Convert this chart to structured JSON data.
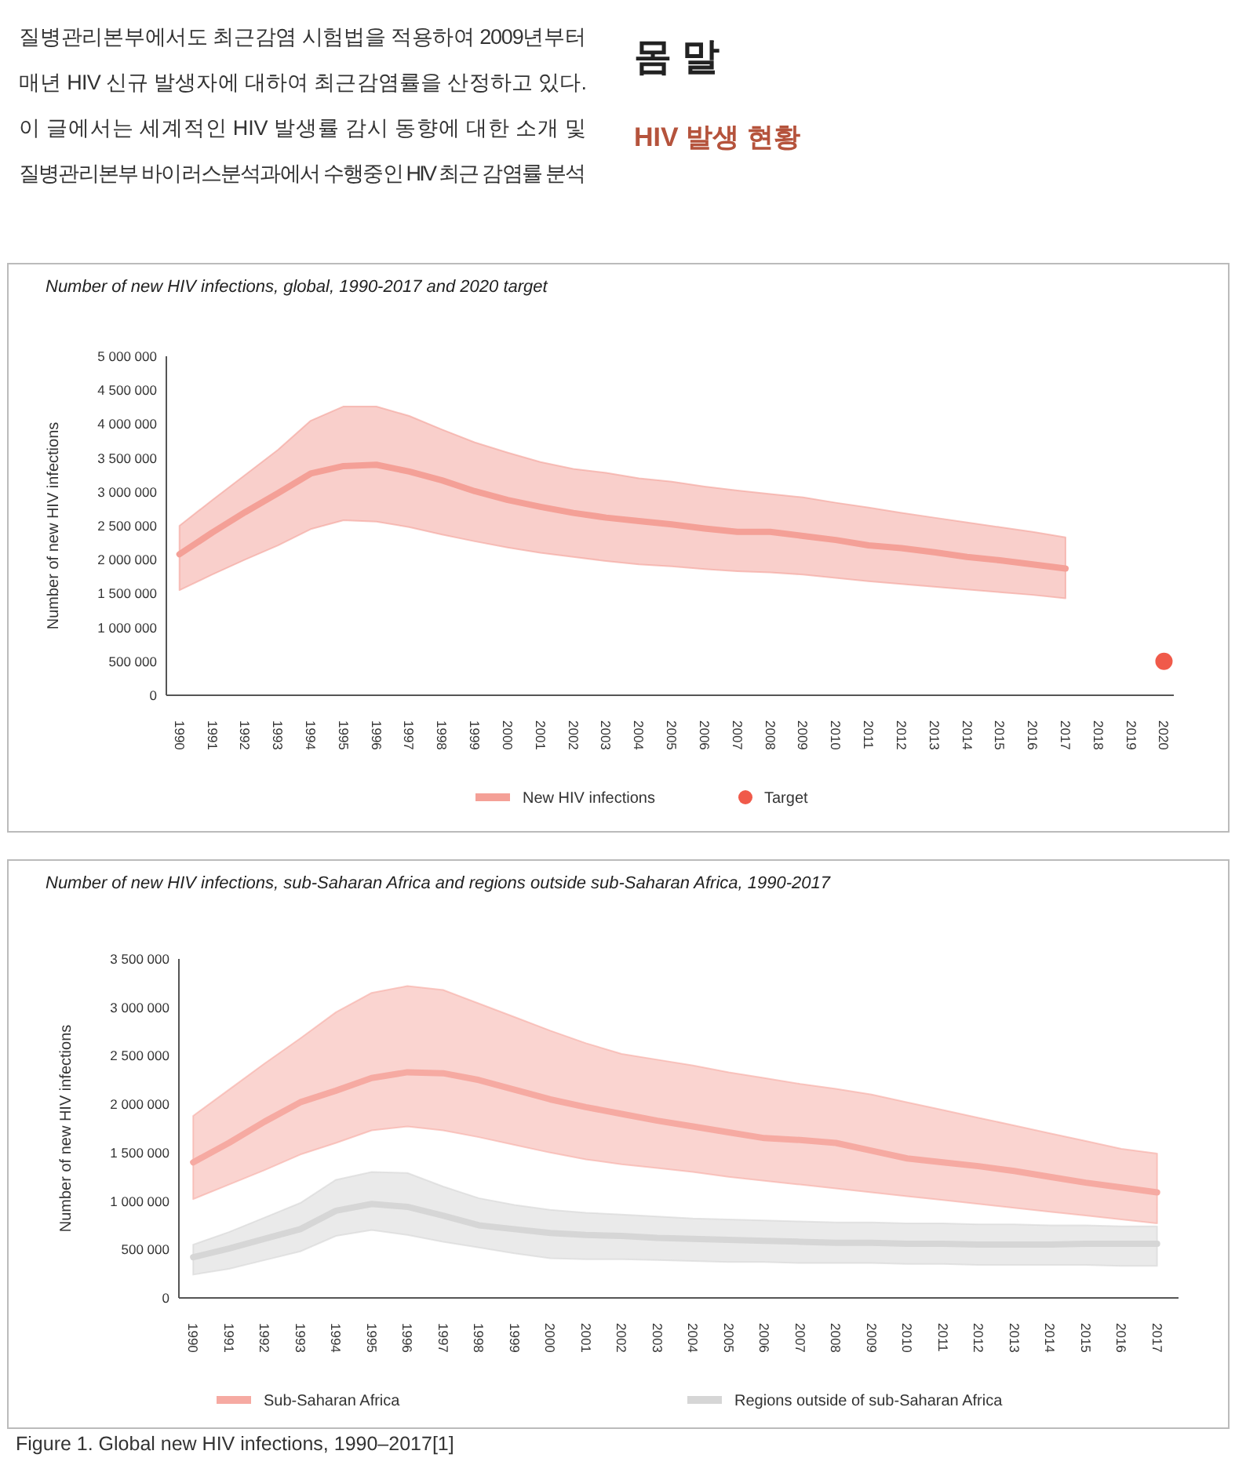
{
  "chart_data": [
    {
      "type": "line",
      "title": "Number of new HIV infections, global, 1990-2017 and 2020 target",
      "ylabel": "Number of new HIV infections",
      "annotations": [
        "질병관리본부에서도 최근감염 시험법을 적용하여 2009년부터",
        "매년 HIV 신규 발생자에 대하여 최근감염률을 산정하고 있다.",
        "이 글에서는 세계적인 HIV 발생률 감시 동향에 대한 소개 및",
        "질병관리본부 바이러스분석과에서 수행중인 HIV 최근 감염률 분석",
        "몸 말",
        "HIV 발생 현황"
      ],
      "x": [
        1990,
        1991,
        1992,
        1993,
        1994,
        1995,
        1996,
        1997,
        1998,
        1999,
        2000,
        2001,
        2002,
        2003,
        2004,
        2005,
        2006,
        2007,
        2008,
        2009,
        2010,
        2011,
        2012,
        2013,
        2014,
        2015,
        2016,
        2017,
        2018,
        2019,
        2020
      ],
      "xlim": [
        1989.6,
        2020.3
      ],
      "xticks": [
        1990,
        1991,
        1992,
        1993,
        1994,
        1995,
        1996,
        1997,
        1998,
        1999,
        2000,
        2001,
        2002,
        2003,
        2004,
        2005,
        2006,
        2007,
        2008,
        2009,
        2010,
        2011,
        2012,
        2013,
        2014,
        2015,
        2016,
        2017,
        2018,
        2019,
        2020
      ],
      "ylim": [
        0,
        5000000
      ],
      "yticks": [
        {
          "value": 0,
          "label": "0"
        },
        {
          "value": 500000,
          "label": "500 000"
        },
        {
          "value": 1000000,
          "label": "1 000 000"
        },
        {
          "value": 1500000,
          "label": "1 500 000"
        },
        {
          "value": 2000000,
          "label": "2 000 000"
        },
        {
          "value": 2500000,
          "label": "2 500 000"
        },
        {
          "value": 3000000,
          "label": "3 000 000"
        },
        {
          "value": 3500000,
          "label": "3 500 000"
        },
        {
          "value": 4000000,
          "label": "4 000 000"
        },
        {
          "value": 4500000,
          "label": "4 500 000"
        },
        {
          "value": 5000000,
          "label": "5 000 000"
        }
      ],
      "legend": "bottom",
      "series": [
        {
          "name": "New HIV infections",
          "color": "#f4a097",
          "values": [
            2080000,
            2400000,
            2700000,
            2980000,
            3270000,
            3380000,
            3400000,
            3300000,
            3170000,
            3010000,
            2880000,
            2780000,
            2690000,
            2620000,
            2570000,
            2520000,
            2460000,
            2410000,
            2410000,
            2350000,
            2290000,
            2210000,
            2170000,
            2110000,
            2040000,
            1990000,
            1930000,
            1870000,
            null,
            null,
            null
          ],
          "upper": [
            2500000,
            2880000,
            3250000,
            3620000,
            4050000,
            4260000,
            4260000,
            4120000,
            3920000,
            3730000,
            3580000,
            3440000,
            3340000,
            3280000,
            3200000,
            3150000,
            3080000,
            3020000,
            2970000,
            2920000,
            2840000,
            2770000,
            2690000,
            2620000,
            2550000,
            2480000,
            2410000,
            2330000,
            null,
            null,
            null
          ],
          "lower": [
            1550000,
            1780000,
            2000000,
            2210000,
            2450000,
            2580000,
            2560000,
            2480000,
            2370000,
            2270000,
            2180000,
            2100000,
            2040000,
            1980000,
            1930000,
            1900000,
            1860000,
            1830000,
            1810000,
            1780000,
            1730000,
            1680000,
            1640000,
            1600000,
            1560000,
            1520000,
            1480000,
            1430000,
            null,
            null,
            null
          ]
        },
        {
          "name": "Target",
          "type": "scatter",
          "marker": "circle",
          "color": "#f05a4a",
          "values": [
            null,
            null,
            null,
            null,
            null,
            null,
            null,
            null,
            null,
            null,
            null,
            null,
            null,
            null,
            null,
            null,
            null,
            null,
            null,
            null,
            null,
            null,
            null,
            null,
            null,
            null,
            null,
            null,
            null,
            null,
            500000
          ]
        }
      ]
    },
    {
      "type": "line",
      "title": "Number of new HIV infections, sub-Saharan Africa and regions outside sub-Saharan Africa, 1990-2017",
      "ylabel": "Number of new HIV infections",
      "annotations": [
        "Figure 1. Global new HIV infections, 1990–2017[1]"
      ],
      "x": [
        1990,
        1991,
        1992,
        1993,
        1994,
        1995,
        1996,
        1997,
        1998,
        1999,
        2000,
        2001,
        2002,
        2003,
        2004,
        2005,
        2006,
        2007,
        2008,
        2009,
        2010,
        2011,
        2012,
        2013,
        2014,
        2015,
        2016,
        2017
      ],
      "xlim": [
        1989.6,
        2017.6
      ],
      "xticks": [
        1990,
        1991,
        1992,
        1993,
        1994,
        1995,
        1996,
        1997,
        1998,
        1999,
        2000,
        2001,
        2002,
        2003,
        2004,
        2005,
        2006,
        2007,
        2008,
        2009,
        2010,
        2011,
        2012,
        2013,
        2014,
        2015,
        2016,
        2017
      ],
      "ylim": [
        0,
        3500000
      ],
      "yticks": [
        {
          "value": 0,
          "label": "0"
        },
        {
          "value": 500000,
          "label": "500 000"
        },
        {
          "value": 1000000,
          "label": "1 000 000"
        },
        {
          "value": 1500000,
          "label": "1 500 000"
        },
        {
          "value": 2000000,
          "label": "2 000 000"
        },
        {
          "value": 2500000,
          "label": "2 500 000"
        },
        {
          "value": 3000000,
          "label": "3 000 000"
        },
        {
          "value": 3500000,
          "label": "3 500 000"
        }
      ],
      "legend": "bottom",
      "series": [
        {
          "name": "Sub-Saharan Africa",
          "color": "#f6aaa2",
          "values": [
            1400000,
            1600000,
            1820000,
            2020000,
            2140000,
            2270000,
            2330000,
            2320000,
            2250000,
            2150000,
            2050000,
            1970000,
            1900000,
            1830000,
            1770000,
            1710000,
            1650000,
            1630000,
            1600000,
            1520000,
            1440000,
            1400000,
            1360000,
            1310000,
            1250000,
            1190000,
            1140000,
            1090000
          ],
          "upper": [
            1880000,
            2150000,
            2420000,
            2680000,
            2950000,
            3150000,
            3220000,
            3180000,
            3040000,
            2900000,
            2760000,
            2630000,
            2520000,
            2460000,
            2400000,
            2330000,
            2270000,
            2210000,
            2160000,
            2100000,
            2020000,
            1940000,
            1860000,
            1780000,
            1700000,
            1620000,
            1540000,
            1490000
          ],
          "lower": [
            1020000,
            1170000,
            1320000,
            1480000,
            1600000,
            1730000,
            1770000,
            1730000,
            1660000,
            1580000,
            1500000,
            1430000,
            1380000,
            1340000,
            1300000,
            1250000,
            1210000,
            1170000,
            1130000,
            1090000,
            1050000,
            1010000,
            970000,
            930000,
            890000,
            850000,
            810000,
            770000
          ]
        },
        {
          "name": "Regions outside of sub-Saharan Africa",
          "color": "#d6d6d6",
          "values": [
            420000,
            510000,
            610000,
            710000,
            900000,
            970000,
            940000,
            850000,
            750000,
            710000,
            670000,
            650000,
            640000,
            620000,
            610000,
            600000,
            590000,
            580000,
            570000,
            570000,
            560000,
            560000,
            550000,
            550000,
            550000,
            560000,
            560000,
            560000
          ],
          "upper": [
            550000,
            680000,
            830000,
            980000,
            1220000,
            1300000,
            1290000,
            1150000,
            1030000,
            960000,
            910000,
            880000,
            860000,
            840000,
            820000,
            810000,
            800000,
            790000,
            780000,
            780000,
            770000,
            770000,
            760000,
            760000,
            750000,
            750000,
            740000,
            740000
          ],
          "lower": [
            240000,
            300000,
            390000,
            480000,
            640000,
            700000,
            650000,
            580000,
            520000,
            460000,
            410000,
            400000,
            400000,
            390000,
            380000,
            370000,
            370000,
            360000,
            360000,
            360000,
            350000,
            350000,
            340000,
            340000,
            340000,
            340000,
            330000,
            330000
          ]
        }
      ]
    }
  ]
}
